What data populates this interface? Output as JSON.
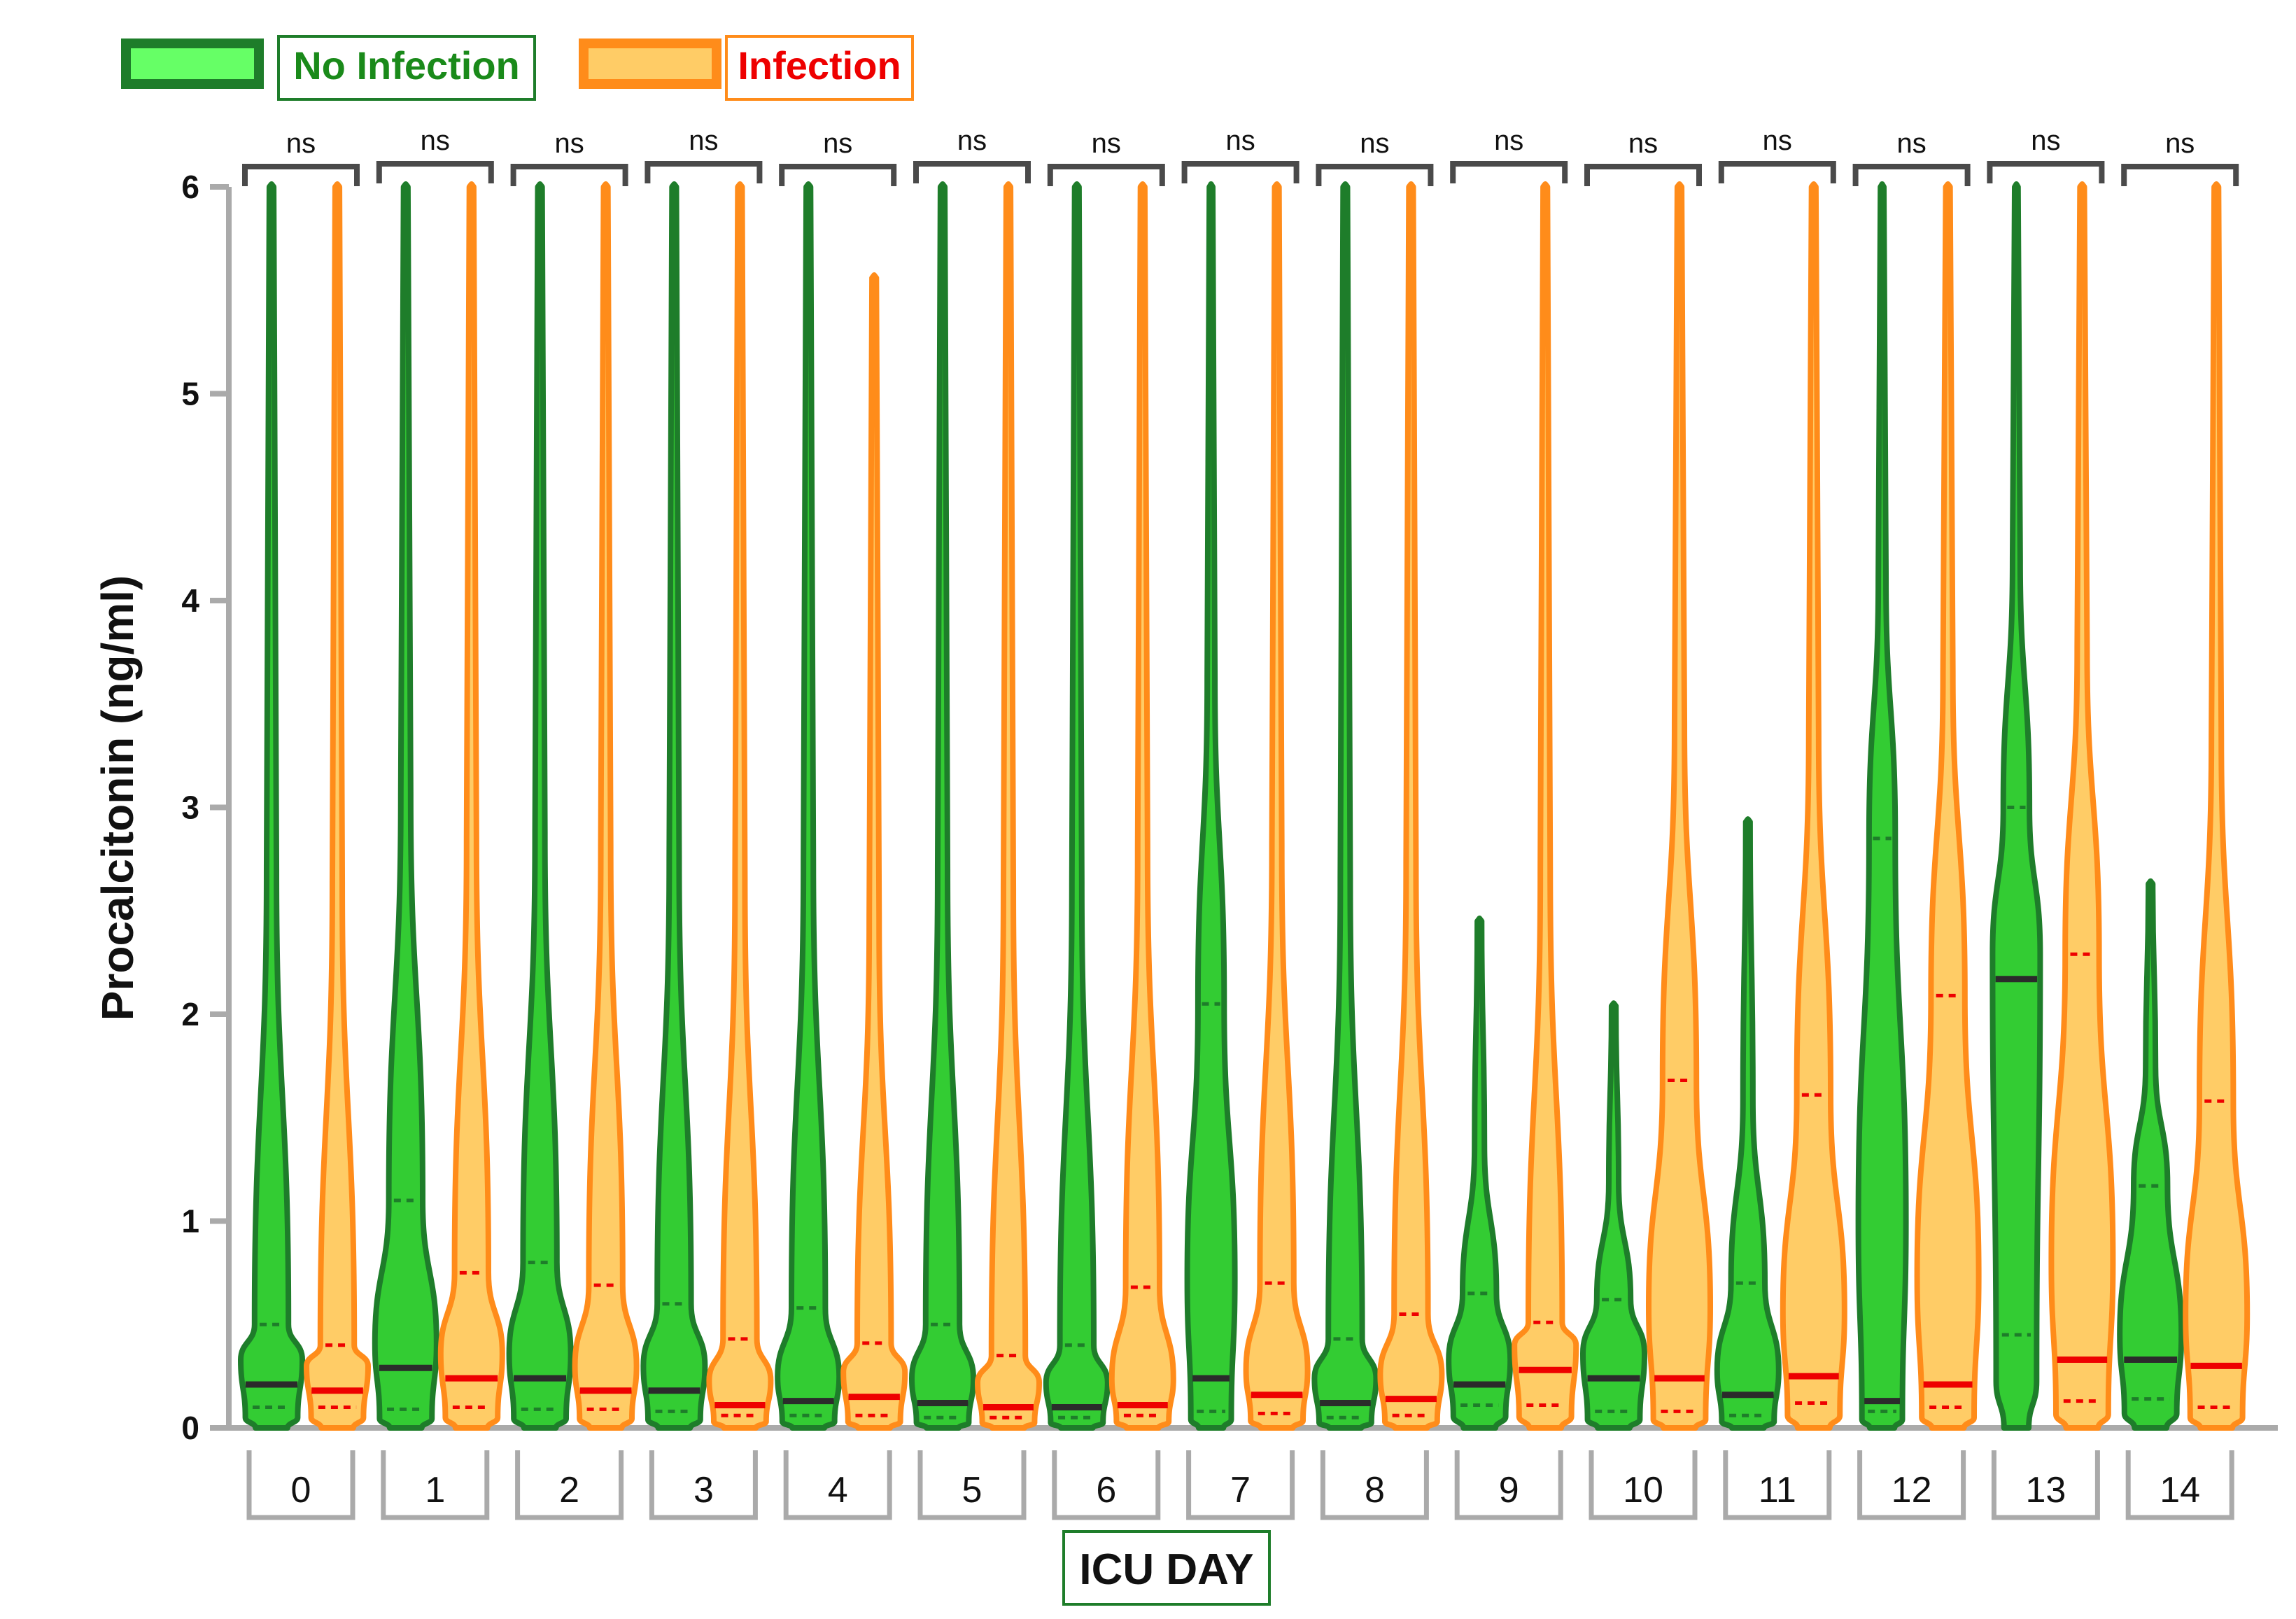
{
  "colors": {
    "no_infection_fill": "#33cc33",
    "no_infection_stroke": "#1e7d2a",
    "infection_fill": "#ffcc66",
    "infection_stroke": "#ff8c1a",
    "median_no_infection": "#2b2b2b",
    "median_infection": "#ee0000",
    "bracket": "#4a4a4a",
    "axis": "#aaaaaa",
    "legend_no_infection_text": "#1a8a1a",
    "legend_infection_text": "#ee0000"
  },
  "legend": [
    {
      "label": "No Infection",
      "fill": "#66ff66",
      "stroke": "#1e7d2a",
      "text_color": "#1a8a1a"
    },
    {
      "label": "Infection",
      "fill": "#ffcc66",
      "stroke": "#ff8c1a",
      "text_color": "#ee0000"
    }
  ],
  "chart_data": {
    "type": "violin",
    "title": "",
    "xlabel": "ICU DAY",
    "ylabel": "Procalcitonin (ng/ml)",
    "ylim": [
      0,
      6
    ],
    "yticks": [
      "0",
      "1",
      "2",
      "3",
      "4",
      "5",
      "6"
    ],
    "categories": [
      "0",
      "1",
      "2",
      "3",
      "4",
      "5",
      "6",
      "7",
      "8",
      "9",
      "10",
      "11",
      "12",
      "13",
      "14"
    ],
    "significance": [
      "ns",
      "ns",
      "ns",
      "ns",
      "ns",
      "ns",
      "ns",
      "ns",
      "ns",
      "ns",
      "ns",
      "ns",
      "ns",
      "ns",
      "ns"
    ],
    "series": [
      {
        "name": "No Infection",
        "median": [
          0.21,
          0.29,
          0.24,
          0.18,
          0.13,
          0.12,
          0.1,
          0.24,
          0.12,
          0.21,
          0.24,
          0.16,
          0.13,
          2.17,
          0.33
        ],
        "q1": [
          0.1,
          0.09,
          0.09,
          0.08,
          0.06,
          0.05,
          0.05,
          0.08,
          0.05,
          0.11,
          0.08,
          0.06,
          0.08,
          0.45,
          0.14
        ],
        "q3": [
          0.5,
          1.1,
          0.8,
          0.6,
          0.58,
          0.5,
          0.4,
          2.05,
          0.43,
          0.65,
          0.62,
          0.7,
          2.85,
          3.0,
          1.17
        ],
        "max": [
          6,
          6,
          6,
          6,
          6,
          6,
          6,
          6,
          6,
          2.45,
          2.04,
          2.93,
          6,
          6,
          2.63
        ]
      },
      {
        "name": "Infection",
        "median": [
          0.18,
          0.24,
          0.18,
          0.11,
          0.15,
          0.1,
          0.11,
          0.16,
          0.14,
          0.28,
          0.24,
          0.25,
          0.21,
          0.33,
          0.3
        ],
        "q1": [
          0.1,
          0.1,
          0.09,
          0.06,
          0.06,
          0.05,
          0.06,
          0.07,
          0.06,
          0.11,
          0.08,
          0.12,
          0.1,
          0.13,
          0.1
        ],
        "q3": [
          0.4,
          0.75,
          0.69,
          0.43,
          0.41,
          0.35,
          0.68,
          0.7,
          0.55,
          0.51,
          1.68,
          1.61,
          2.09,
          2.29,
          1.58
        ],
        "max": [
          6,
          6,
          6,
          6,
          5.56,
          6,
          6,
          6,
          6,
          6,
          6,
          6,
          6,
          6,
          6
        ]
      }
    ]
  }
}
